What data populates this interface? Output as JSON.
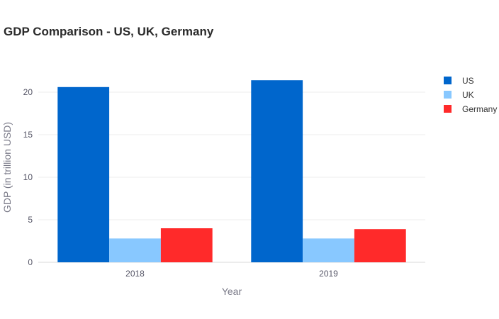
{
  "chart_data": {
    "type": "bar",
    "title": "GDP Comparison - US, UK, Germany",
    "xlabel": "Year",
    "ylabel": "GDP (in trillion USD)",
    "categories": [
      "2018",
      "2019"
    ],
    "series": [
      {
        "name": "US",
        "values": [
          20.6,
          21.4
        ],
        "color": "#0066cc"
      },
      {
        "name": "UK",
        "values": [
          2.8,
          2.8
        ],
        "color": "#88c8ff"
      },
      {
        "name": "Germany",
        "values": [
          4.0,
          3.9
        ],
        "color": "#ff2a2a"
      }
    ],
    "ylim": [
      0,
      22.5
    ],
    "yticks": [
      0,
      5,
      10,
      15,
      20
    ],
    "grid": true,
    "legend_position": "right"
  }
}
